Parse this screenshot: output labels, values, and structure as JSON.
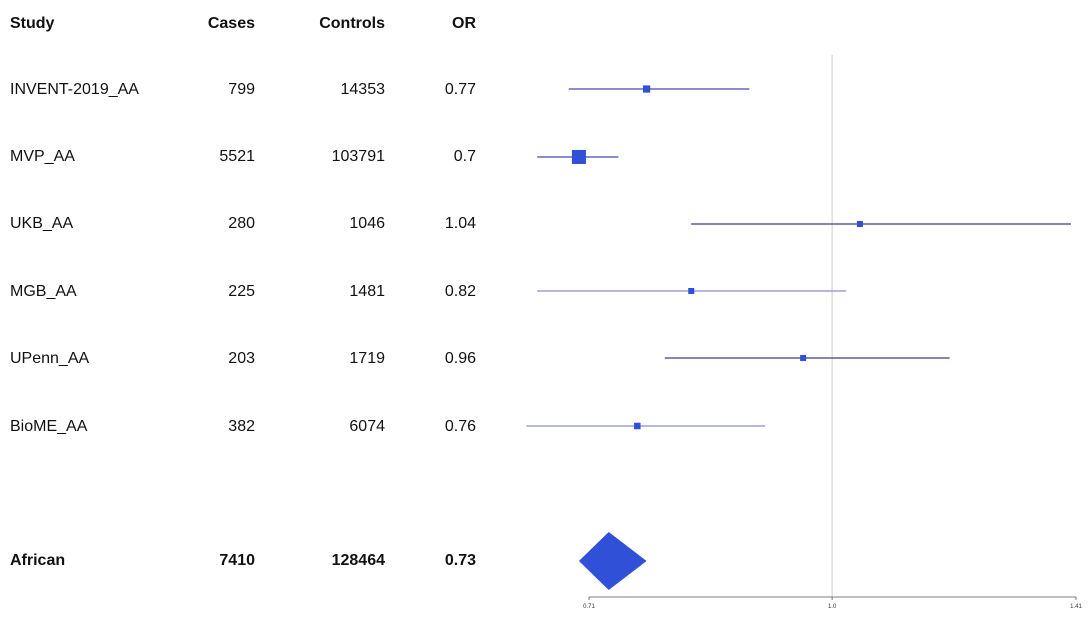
{
  "table": {
    "headers": {
      "study": "Study",
      "cases": "Cases",
      "controls": "Controls",
      "or": "OR"
    },
    "rows": [
      {
        "study": "INVENT-2019_AA",
        "cases": "799",
        "controls": "14353",
        "or": "0.77"
      },
      {
        "study": "MVP_AA",
        "cases": "5521",
        "controls": "103791",
        "or": "0.7"
      },
      {
        "study": "UKB_AA",
        "cases": "280",
        "controls": "1046",
        "or": "1.04"
      },
      {
        "study": "MGB_AA",
        "cases": "225",
        "controls": "1481",
        "or": "0.82"
      },
      {
        "study": "UPenn_AA",
        "cases": "203",
        "controls": "1719",
        "or": "0.96"
      },
      {
        "study": "BioME_AA",
        "cases": "382",
        "controls": "6074",
        "or": "0.76"
      }
    ],
    "summary": {
      "study": "African",
      "cases": "7410",
      "controls": "128464",
      "or": "0.73"
    }
  },
  "chart_data": {
    "type": "forest",
    "scale": "log",
    "xlim": [
      0.71,
      1.41
    ],
    "ticks": [
      "0.71",
      "1.0",
      "1.41"
    ],
    "reference_line": 1.0,
    "points": [
      {
        "study": "INVENT-2019_AA",
        "or": 0.77,
        "ci_low": 0.69,
        "ci_high": 0.89,
        "marker_scale": 0.32
      },
      {
        "study": "MVP_AA",
        "or": 0.7,
        "ci_low": 0.66,
        "ci_high": 0.74,
        "marker_scale": 1.0
      },
      {
        "study": "UKB_AA",
        "or": 1.04,
        "ci_low": 0.82,
        "ci_high": 1.4,
        "marker_scale": 0.2
      },
      {
        "study": "MGB_AA",
        "or": 0.82,
        "ci_low": 0.66,
        "ci_high": 1.02,
        "marker_scale": 0.2
      },
      {
        "study": "UPenn_AA",
        "or": 0.96,
        "ci_low": 0.79,
        "ci_high": 1.18,
        "marker_scale": 0.2
      },
      {
        "study": "BioME_AA",
        "or": 0.76,
        "ci_low": 0.65,
        "ci_high": 0.91,
        "marker_scale": 0.25
      }
    ],
    "summary": {
      "study": "African",
      "or": 0.73,
      "ci_low": 0.7,
      "ci_high": 0.77
    },
    "colors": {
      "marker": "#3050d8",
      "ci_line_light": "#8c8cd0",
      "ci_line_dark": "#3a3a8c",
      "reference": "#cccccc",
      "axis": "#555555"
    }
  }
}
